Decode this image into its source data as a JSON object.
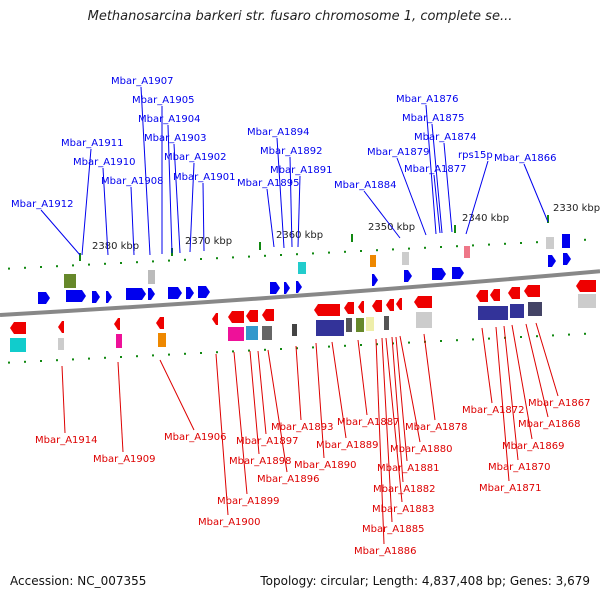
{
  "title": "Methanosarcina barkeri str. fusaro chromosome 1, complete se...",
  "accession": "Accession: NC_007355",
  "topology": "Topology: circular; Length: 4,837,408 bp; Genes: 3,679",
  "colors": {
    "top_strand": "#0000ee",
    "bottom_strand": "#dd0000",
    "backbone": "#888888",
    "tick": "#118811"
  },
  "ticks": [
    "2380 kbp",
    "2370 kbp",
    "2360 kbp",
    "2350 kbp",
    "2340 kbp",
    "2330 kbp"
  ],
  "top_genes": [
    "Mbar_A1907",
    "Mbar_A1905",
    "Mbar_A1904",
    "Mbar_A1903",
    "Mbar_A1911",
    "Mbar_A1910",
    "Mbar_A1902",
    "Mbar_A1908",
    "Mbar_A1901",
    "Mbar_A1912",
    "Mbar_A1894",
    "Mbar_A1892",
    "Mbar_A1891",
    "Mbar_A1895",
    "Mbar_A1876",
    "Mbar_A1875",
    "Mbar_A1874",
    "Mbar_A1879",
    "Mbar_A1877",
    "Mbar_A1884",
    "rps15p",
    "Mbar_A1866"
  ],
  "bottom_genes": [
    "Mbar_A1914",
    "Mbar_A1909",
    "Mbar_A1906",
    "Mbar_A1900",
    "Mbar_A1899",
    "Mbar_A1898",
    "Mbar_A1897",
    "Mbar_A1896",
    "Mbar_A1893",
    "Mbar_A1890",
    "Mbar_A1889",
    "Mbar_A1887",
    "Mbar_A1886",
    "Mbar_A1885",
    "Mbar_A1883",
    "Mbar_A1882",
    "Mbar_A1881",
    "Mbar_A1880",
    "Mbar_A1878",
    "Mbar_A1872",
    "Mbar_A1871",
    "Mbar_A1870",
    "Mbar_A1869",
    "Mbar_A1868",
    "Mbar_A1867"
  ]
}
